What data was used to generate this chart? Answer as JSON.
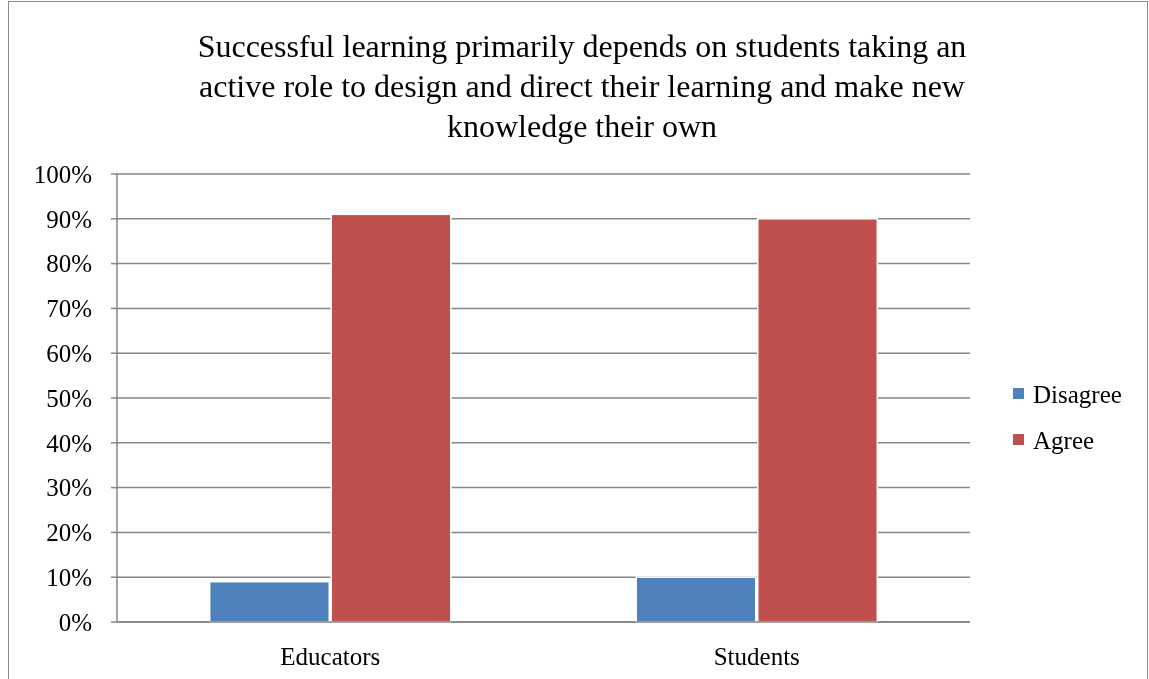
{
  "chart_data": {
    "type": "bar",
    "title": "Successful learning primarily depends on students taking an active role to design and direct their learning and make new knowledge their own",
    "categories": [
      "Educators",
      "Students"
    ],
    "series": [
      {
        "name": "Disagree",
        "color": "#4f81bd",
        "values": [
          9,
          10
        ]
      },
      {
        "name": "Agree",
        "color": "#c0504d",
        "values": [
          91,
          90
        ]
      }
    ],
    "ylim": [
      0,
      100
    ],
    "yticks": [
      {
        "value": 0,
        "label": "0%"
      },
      {
        "value": 10,
        "label": "10%"
      },
      {
        "value": 20,
        "label": "20%"
      },
      {
        "value": 30,
        "label": "30%"
      },
      {
        "value": 40,
        "label": "40%"
      },
      {
        "value": 50,
        "label": "50%"
      },
      {
        "value": 60,
        "label": "60%"
      },
      {
        "value": 70,
        "label": "70%"
      },
      {
        "value": 80,
        "label": "80%"
      },
      {
        "value": 90,
        "label": "90%"
      },
      {
        "value": 100,
        "label": "100%"
      }
    ],
    "grid": "y",
    "legend": "right"
  }
}
